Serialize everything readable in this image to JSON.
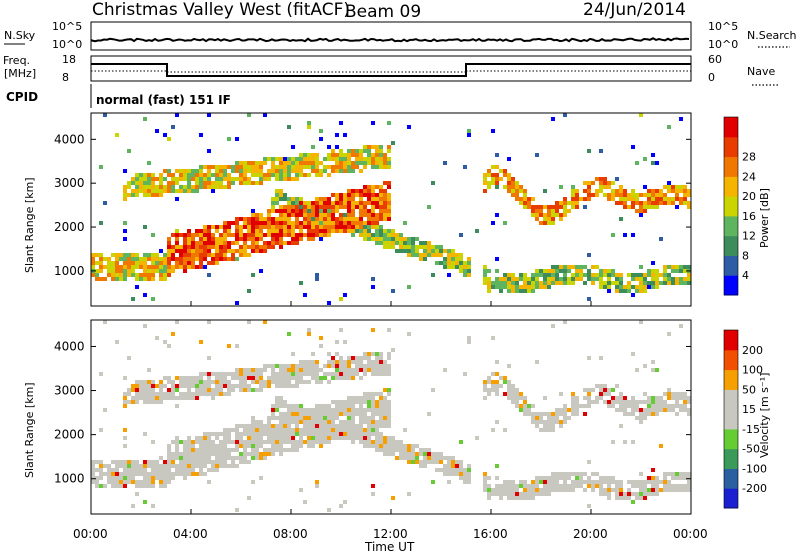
{
  "header": {
    "station": "Christmas Valley West (fitACF)",
    "beam": "Beam 09",
    "date": "24/Jun/2014"
  },
  "noise_panel": {
    "left_label": "N.Sky",
    "right_label": "N.Search",
    "left_ticks": [
      "10^5",
      "10^0"
    ],
    "right_ticks": [
      "10^5",
      "10^0"
    ]
  },
  "freq_panel": {
    "left_label_1": "Freq.",
    "left_label_2": "[MHz]",
    "right_label": "Nave",
    "left_ticks": [
      "18",
      "8"
    ],
    "right_ticks": [
      "60",
      "0"
    ]
  },
  "cpid": {
    "label": "CPID",
    "program": "normal (fast) 151 IF"
  },
  "colors": {
    "power": [
      "#0000ff",
      "#2e5da6",
      "#3c8c5c",
      "#5fb55f",
      "#c9d400",
      "#f5b400",
      "#f07800",
      "#e83c00",
      "#e00000"
    ],
    "velocity": [
      "#e00000",
      "#f05000",
      "#f5a000",
      "#c8c8c0",
      "#c8c8c0",
      "#66cc33",
      "#3a9a5a",
      "#2a5fa0",
      "#1a20d0"
    ]
  },
  "chart_data": [
    {
      "type": "heatmap",
      "name": "power",
      "ylabel": "Slant Range [km]",
      "yticks": [
        "1000",
        "2000",
        "3000",
        "4000"
      ],
      "ylim": [
        200,
        4600
      ],
      "colorbar_label": "Power [dB]",
      "colorbar_ticks": [
        "4",
        "8",
        "12",
        "16",
        "20",
        "24",
        "28"
      ]
    },
    {
      "type": "heatmap",
      "name": "velocity",
      "ylabel": "Slant Range [km]",
      "yticks": [
        "1000",
        "2000",
        "3000",
        "4000"
      ],
      "ylim": [
        200,
        4600
      ],
      "colorbar_label": "Velocity [m s⁻¹]",
      "colorbar_ticks": [
        "200",
        "100",
        "50",
        "15",
        "-15",
        "-50",
        "-100",
        "-200"
      ]
    }
  ],
  "xaxis": {
    "label": "Time UT",
    "ticks": [
      "00:00",
      "04:00",
      "08:00",
      "12:00",
      "16:00",
      "20:00",
      "00:00"
    ]
  }
}
